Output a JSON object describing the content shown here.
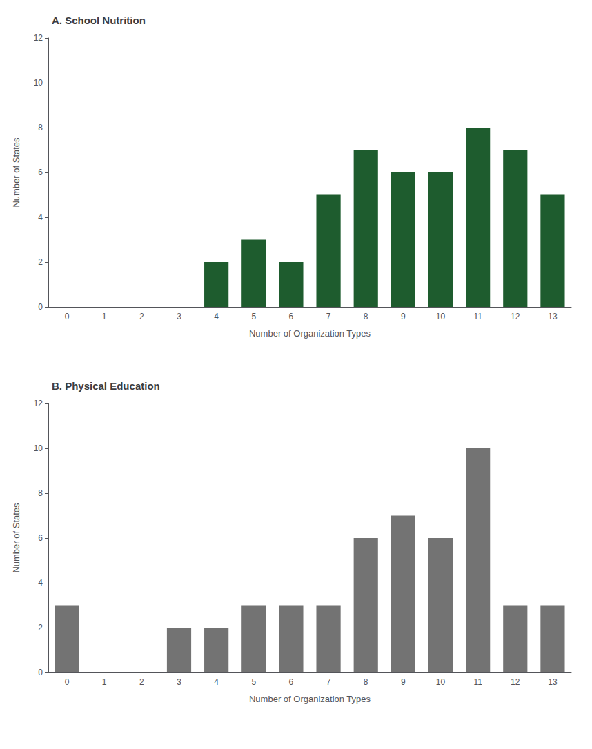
{
  "chart_data": [
    {
      "type": "bar",
      "title": "A. School Nutrition",
      "categories": [
        "0",
        "1",
        "2",
        "3",
        "4",
        "5",
        "6",
        "7",
        "8",
        "9",
        "10",
        "11",
        "12",
        "13"
      ],
      "values": [
        0,
        0,
        0,
        0,
        2,
        3,
        2,
        5,
        7,
        6,
        6,
        8,
        7,
        5
      ],
      "color": "#1e5c2e",
      "xlabel": "Number of Organization Types",
      "ylabel": "Number of States",
      "ylim": [
        0,
        12
      ],
      "yticks": [
        0,
        2,
        4,
        6,
        8,
        10,
        12
      ],
      "grid": false
    },
    {
      "type": "bar",
      "title": "B. Physical Education",
      "categories": [
        "0",
        "1",
        "2",
        "3",
        "4",
        "5",
        "6",
        "7",
        "8",
        "9",
        "10",
        "11",
        "12",
        "13"
      ],
      "values": [
        3,
        0,
        0,
        2,
        2,
        3,
        3,
        3,
        6,
        7,
        6,
        10,
        3,
        3
      ],
      "color": "#737373",
      "xlabel": "Number of Organization Types",
      "ylabel": "Number of States",
      "ylim": [
        0,
        12
      ],
      "yticks": [
        0,
        2,
        4,
        6,
        8,
        10,
        12
      ],
      "grid": false
    }
  ]
}
